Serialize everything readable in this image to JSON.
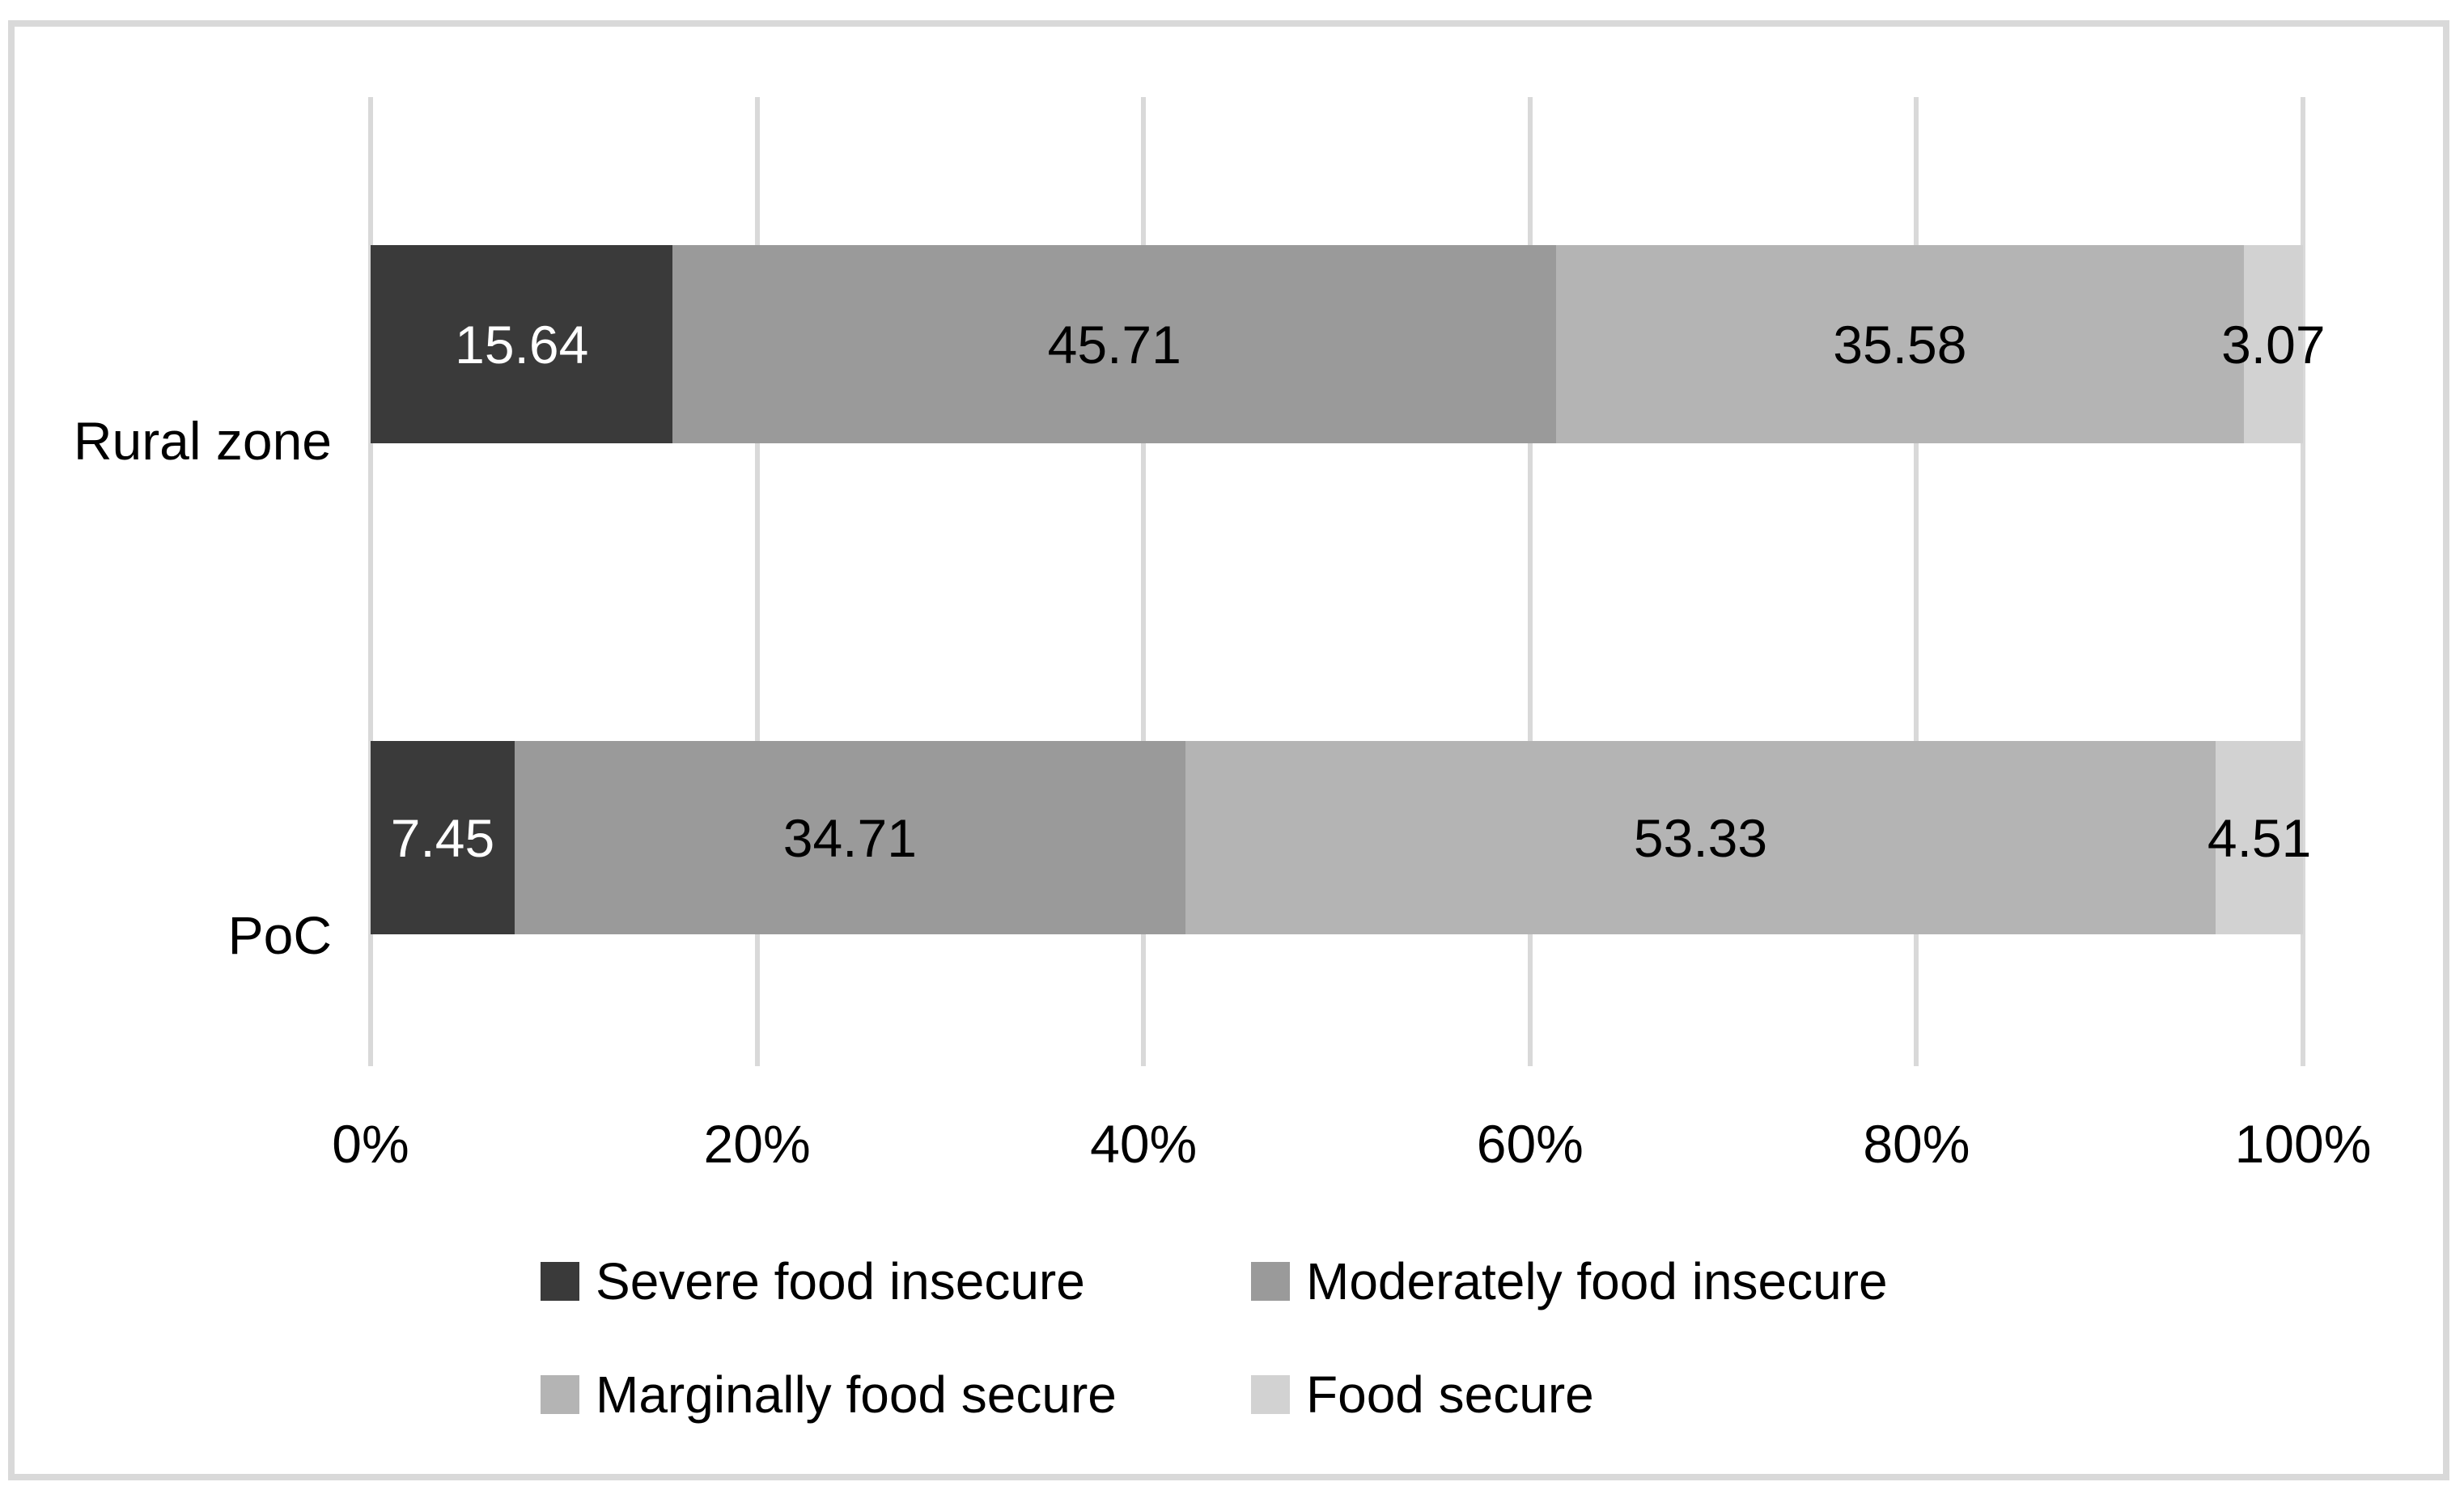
{
  "figure": {
    "background": "#ffffff",
    "border_color": "#d9d9d9"
  },
  "chart_data": {
    "type": "bar",
    "orientation": "horizontal-stacked",
    "title": "",
    "xlabel": "",
    "ylabel": "",
    "xlim": [
      0,
      100
    ],
    "grid": "vertical",
    "gridline_color": "#d9d9d9",
    "categories": [
      "Rural zone",
      "PoC"
    ],
    "series": [
      {
        "name": "Severe food insecure",
        "color": "#3a3a3a",
        "label_color": "#ffffff",
        "values": [
          15.64,
          7.45
        ]
      },
      {
        "name": "Moderately food insecure",
        "color": "#9a9a9a",
        "label_color": "#000000",
        "values": [
          45.71,
          34.71
        ]
      },
      {
        "name": "Marginally food secure",
        "color": "#b4b4b4",
        "label_color": "#000000",
        "values": [
          35.58,
          53.33
        ]
      },
      {
        "name": "Food secure",
        "color": "#d2d2d2",
        "label_color": "#000000",
        "values": [
          3.07,
          4.51
        ]
      }
    ],
    "value_labels": [
      [
        "15.64",
        "45.71",
        "35.58",
        "3.07"
      ],
      [
        "7.45",
        "34.71",
        "53.33",
        "4.51"
      ]
    ],
    "x_ticks": [
      "0%",
      "20%",
      "40%",
      "60%",
      "80%",
      "100%"
    ],
    "legend_position": "bottom",
    "legend": [
      "Severe food insecure",
      "Moderately food insecure",
      "Marginally food secure",
      "Food secure"
    ]
  }
}
